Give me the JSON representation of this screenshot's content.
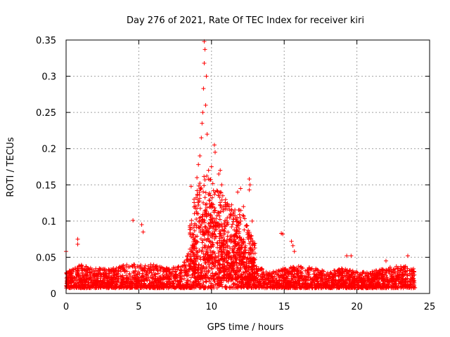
{
  "chart_data": {
    "type": "scatter",
    "title": "Day 276 of 2021, Rate Of TEC Index for receiver kiri",
    "xlabel": "GPS time / hours",
    "ylabel": "ROTI / TECUs",
    "xlim": [
      0,
      25
    ],
    "ylim": [
      0,
      0.35
    ],
    "xticks": [
      0,
      5,
      10,
      15,
      20,
      25
    ],
    "yticks": [
      0,
      0.05,
      0.1,
      0.15,
      0.2,
      0.25,
      0.3,
      0.35
    ],
    "xtick_labels": [
      "0",
      "5",
      "10",
      "15",
      "20",
      "25"
    ],
    "ytick_labels": [
      "0",
      "0.05",
      "0.1",
      "0.15",
      "0.2",
      "0.25",
      "0.3",
      "0.35"
    ],
    "grid": true,
    "marker": "+",
    "series": [
      {
        "name": "ROTI",
        "color": "#ff0000",
        "envelope_x": [
          0,
          0.5,
          1,
          2,
          3,
          4,
          5,
          6,
          7,
          8,
          8.5,
          9,
          9.5,
          10,
          10.5,
          11,
          11.5,
          12,
          12.5,
          13,
          14,
          15,
          16,
          17,
          18,
          19,
          20,
          21,
          22,
          23,
          24
        ],
        "envelope_typical_max": [
          0.03,
          0.035,
          0.04,
          0.035,
          0.035,
          0.04,
          0.04,
          0.04,
          0.035,
          0.04,
          0.06,
          0.1,
          0.12,
          0.11,
          0.1,
          0.09,
          0.08,
          0.08,
          0.06,
          0.04,
          0.03,
          0.035,
          0.04,
          0.035,
          0.03,
          0.035,
          0.03,
          0.03,
          0.035,
          0.04,
          0.035
        ],
        "highlights": [
          {
            "x": 0.0,
            "y": 0.058
          },
          {
            "x": 0.8,
            "y": 0.075
          },
          {
            "x": 0.8,
            "y": 0.068
          },
          {
            "x": 4.6,
            "y": 0.101
          },
          {
            "x": 5.2,
            "y": 0.095
          },
          {
            "x": 5.3,
            "y": 0.085
          },
          {
            "x": 8.6,
            "y": 0.148
          },
          {
            "x": 8.8,
            "y": 0.13
          },
          {
            "x": 9.0,
            "y": 0.16
          },
          {
            "x": 9.1,
            "y": 0.178
          },
          {
            "x": 9.2,
            "y": 0.19
          },
          {
            "x": 9.3,
            "y": 0.215
          },
          {
            "x": 9.35,
            "y": 0.235
          },
          {
            "x": 9.4,
            "y": 0.25
          },
          {
            "x": 9.45,
            "y": 0.283
          },
          {
            "x": 9.5,
            "y": 0.318
          },
          {
            "x": 9.55,
            "y": 0.337
          },
          {
            "x": 9.5,
            "y": 0.348
          },
          {
            "x": 9.6,
            "y": 0.26
          },
          {
            "x": 9.65,
            "y": 0.3
          },
          {
            "x": 9.7,
            "y": 0.22
          },
          {
            "x": 9.8,
            "y": 0.17
          },
          {
            "x": 10.0,
            "y": 0.175
          },
          {
            "x": 10.2,
            "y": 0.205
          },
          {
            "x": 10.25,
            "y": 0.195
          },
          {
            "x": 10.5,
            "y": 0.165
          },
          {
            "x": 10.6,
            "y": 0.17
          },
          {
            "x": 10.7,
            "y": 0.15
          },
          {
            "x": 11.2,
            "y": 0.12
          },
          {
            "x": 11.8,
            "y": 0.14
          },
          {
            "x": 12.0,
            "y": 0.145
          },
          {
            "x": 12.2,
            "y": 0.12
          },
          {
            "x": 12.6,
            "y": 0.158
          },
          {
            "x": 12.65,
            "y": 0.15
          },
          {
            "x": 12.6,
            "y": 0.143
          },
          {
            "x": 12.8,
            "y": 0.1
          },
          {
            "x": 14.8,
            "y": 0.083
          },
          {
            "x": 14.9,
            "y": 0.082
          },
          {
            "x": 15.5,
            "y": 0.072
          },
          {
            "x": 15.6,
            "y": 0.066
          },
          {
            "x": 15.7,
            "y": 0.058
          },
          {
            "x": 19.3,
            "y": 0.052
          },
          {
            "x": 19.6,
            "y": 0.052
          },
          {
            "x": 22.0,
            "y": 0.045
          },
          {
            "x": 23.5,
            "y": 0.052
          }
        ],
        "typical_baseline": 0.015
      }
    ]
  }
}
